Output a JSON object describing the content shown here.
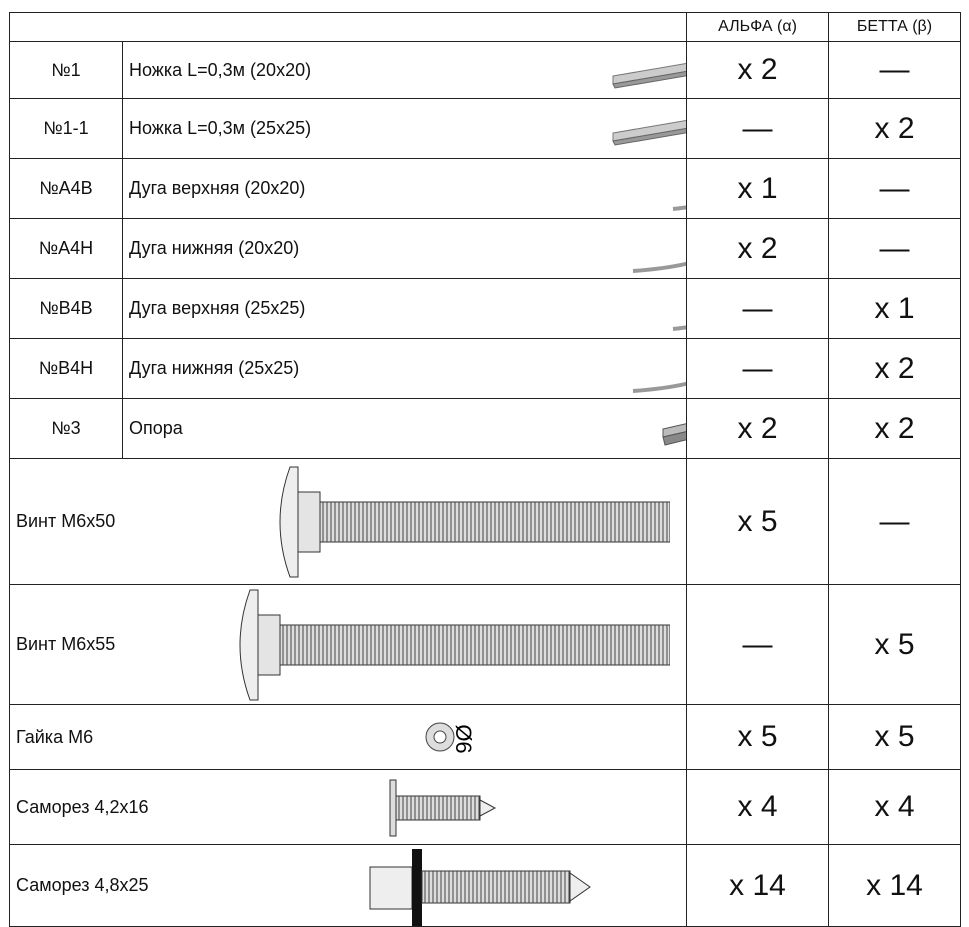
{
  "table": {
    "header": [
      "АЛЬФА (α)",
      "БЕТТА (β)"
    ],
    "rows": [
      {
        "code": "№1",
        "name": "Ножка L=0,3м (20х20)",
        "alpha": "х 2",
        "beta": "—"
      },
      {
        "code": "№1-1",
        "name": "Ножка L=0,3м (25х25)",
        "alpha": "—",
        "beta": "х 2"
      },
      {
        "code": "№А4В",
        "name": "Дуга  верхняя (20х20)",
        "alpha": "х 1",
        "beta": "—"
      },
      {
        "code": "№А4Н",
        "name": "Дуга  нижняя (20х20)",
        "alpha": "х 2",
        "beta": "—"
      },
      {
        "code": "№В4В",
        "name": "Дуга  верхняя (25х25)",
        "alpha": "—",
        "beta": "х 1"
      },
      {
        "code": "№В4Н",
        "name": "Дуга  нижняя (25х25)",
        "alpha": "—",
        "beta": "х 2"
      },
      {
        "code": "№3",
        "name": "Опора",
        "alpha": "х 2",
        "beta": "х 2"
      },
      {
        "name": "Винт М6х50",
        "alpha": "х 5",
        "beta": "—"
      },
      {
        "name": "Винт М6х55",
        "alpha": "—",
        "beta": "х 5"
      },
      {
        "name": "Гайка М6",
        "diagram_label": "Ø6",
        "alpha": "х 5",
        "beta": "х 5"
      },
      {
        "name": "Саморез 4,2х16",
        "alpha": "х 4",
        "beta": "х 4"
      },
      {
        "name": "Саморез 4,8х25",
        "alpha": "х 14",
        "beta": "х 14"
      }
    ]
  }
}
